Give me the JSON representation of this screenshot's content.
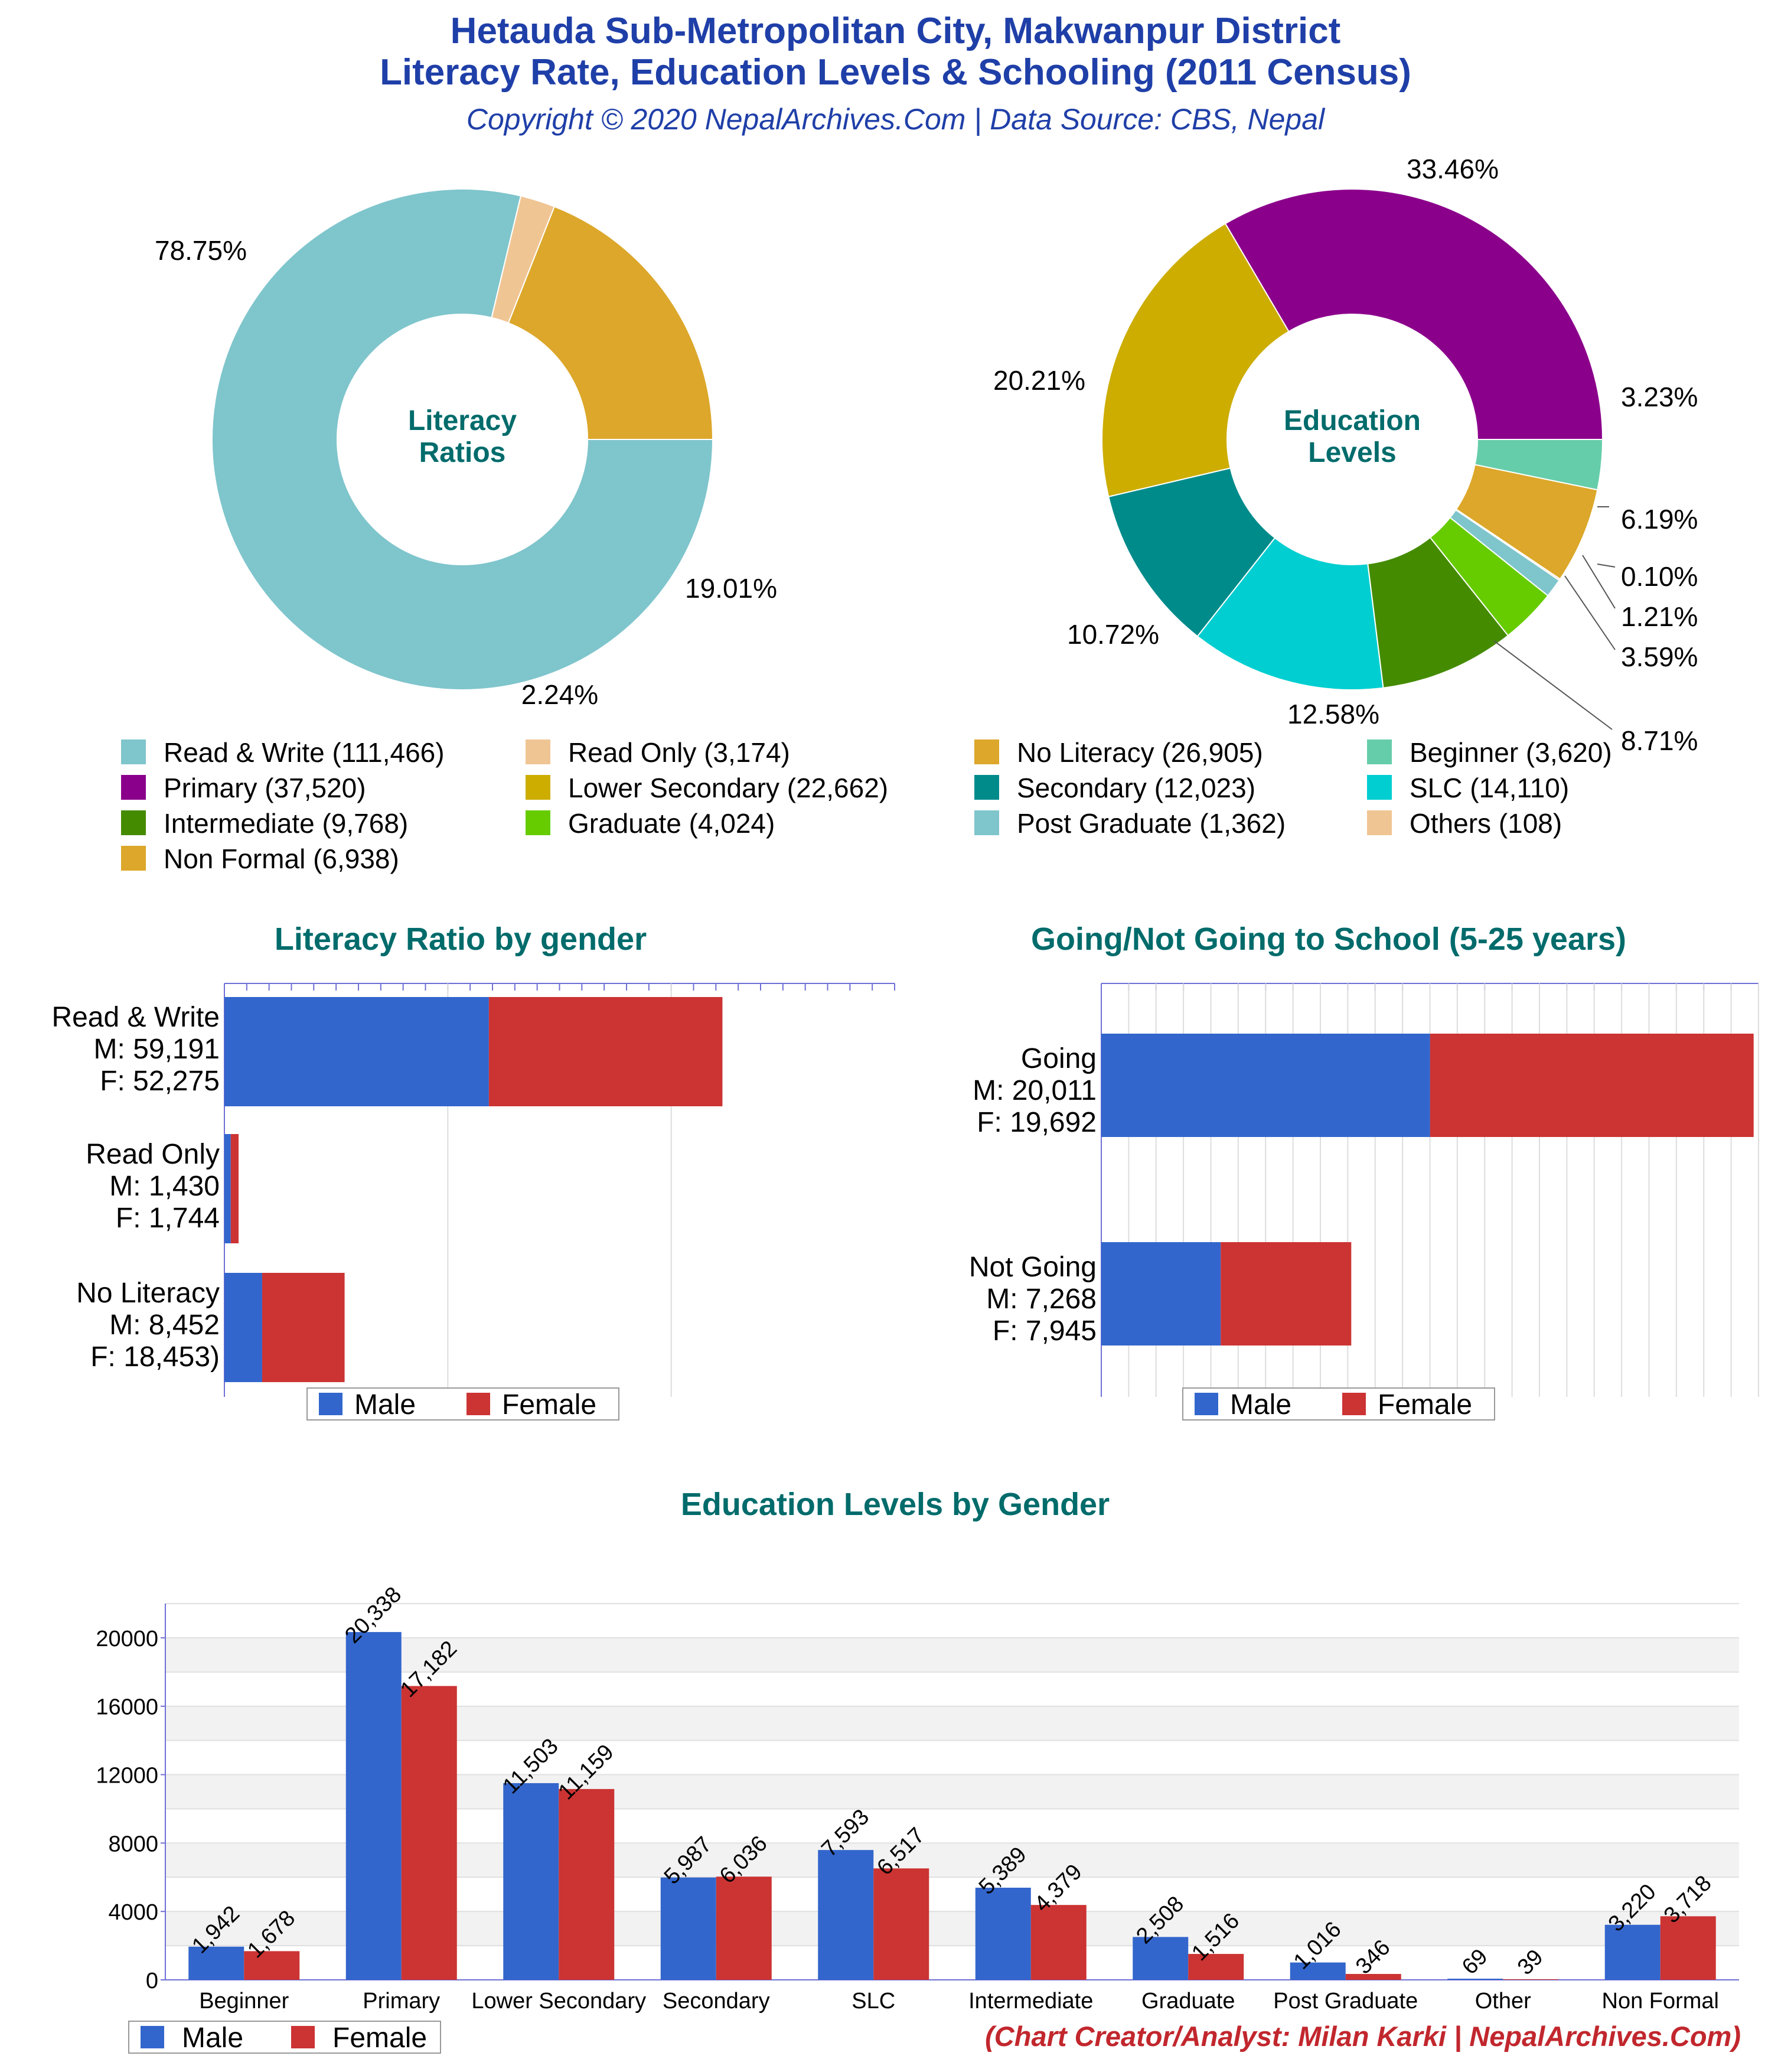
{
  "header": {
    "title_line1": "Hetauda Sub-Metropolitan City, Makwanpur District",
    "title_line2": "Literacy Rate, Education Levels & Schooling (2011 Census)",
    "subtitle": "Copyright © 2020 NepalArchives.Com | Data Source: CBS, Nepal"
  },
  "footer": {
    "credit": "(Chart Creator/Analyst: Milan Karki | NepalArchives.Com)"
  },
  "chart_data": [
    {
      "type": "pie",
      "variant": "donut",
      "title": "Literacy Ratios",
      "center_label": [
        "Literacy",
        "Ratios"
      ],
      "slices": [
        {
          "label": "Read & Write",
          "value": 111466,
          "percent": "78.75%",
          "color": "#7fc5cc"
        },
        {
          "label": "Read Only",
          "value": 3174,
          "percent": "2.24%",
          "color": "#f0c594"
        },
        {
          "label": "No Literacy",
          "value": 26905,
          "percent": "19.01%",
          "color": "#dca72a"
        }
      ]
    },
    {
      "type": "pie",
      "variant": "donut",
      "title": "Education Levels",
      "center_label": [
        "Education",
        "Levels"
      ],
      "slices": [
        {
          "label": "Beginner",
          "value": 3620,
          "percent": "3.23%",
          "color": "#66cdaa"
        },
        {
          "label": "Non Formal",
          "value": 6938,
          "percent": "6.19%",
          "color": "#dca72a"
        },
        {
          "label": "Others",
          "value": 108,
          "percent": "0.10%",
          "color": "#f0c594"
        },
        {
          "label": "Post Graduate",
          "value": 1362,
          "percent": "1.21%",
          "color": "#7fc5cc"
        },
        {
          "label": "Graduate",
          "value": 4024,
          "percent": "3.59%",
          "color": "#66cc00"
        },
        {
          "label": "Intermediate",
          "value": 9768,
          "percent": "8.71%",
          "color": "#458b00"
        },
        {
          "label": "SLC",
          "value": 14110,
          "percent": "12.58%",
          "color": "#00ced1"
        },
        {
          "label": "Secondary",
          "value": 12023,
          "percent": "10.72%",
          "color": "#008b8b"
        },
        {
          "label": "Lower Secondary",
          "value": 22662,
          "percent": "20.21%",
          "color": "#ccad00"
        },
        {
          "label": "Primary",
          "value": 37520,
          "percent": "33.46%",
          "color": "#8b008b"
        }
      ]
    },
    {
      "type": "legend",
      "entries": [
        {
          "label": "Read & Write (111,466)",
          "color": "#7fc5cc"
        },
        {
          "label": "Read Only (3,174)",
          "color": "#f0c594"
        },
        {
          "label": "No Literacy (26,905)",
          "color": "#dca72a"
        },
        {
          "label": "Beginner (3,620)",
          "color": "#66cdaa"
        },
        {
          "label": "Primary (37,520)",
          "color": "#8b008b"
        },
        {
          "label": "Lower Secondary (22,662)",
          "color": "#ccad00"
        },
        {
          "label": "Secondary (12,023)",
          "color": "#008b8b"
        },
        {
          "label": "SLC (14,110)",
          "color": "#00ced1"
        },
        {
          "label": "Intermediate (9,768)",
          "color": "#458b00"
        },
        {
          "label": "Graduate (4,024)",
          "color": "#66cc00"
        },
        {
          "label": "Post Graduate (1,362)",
          "color": "#7fc5cc"
        },
        {
          "label": "Others (108)",
          "color": "#f0c594"
        },
        {
          "label": "Non Formal (6,938)",
          "color": "#dca72a"
        }
      ]
    },
    {
      "type": "bar",
      "orientation": "horizontal",
      "stacked": true,
      "title": "Literacy Ratio by gender",
      "categories": [
        {
          "name": "Read & Write",
          "male_text": "M: 59,191",
          "female_text": "F: 52,275"
        },
        {
          "name": "Read Only",
          "male_text": "M: 1,430",
          "female_text": "F: 1,744"
        },
        {
          "name": "No Literacy",
          "male_text": "M: 8,452",
          "female_text": "F: 18,453)"
        }
      ],
      "series": [
        {
          "name": "Male",
          "color": "#3366cc",
          "values": [
            59191,
            1430,
            8452
          ]
        },
        {
          "name": "Female",
          "color": "#cc3333",
          "values": [
            52275,
            1744,
            18453
          ]
        }
      ],
      "xlim": [
        0,
        150000
      ]
    },
    {
      "type": "bar",
      "orientation": "horizontal",
      "stacked": true,
      "title": "Going/Not Going to School (5-25 years)",
      "categories": [
        {
          "name": "Going",
          "male_text": "M: 20,011",
          "female_text": "F: 19,692"
        },
        {
          "name": "Not Going",
          "male_text": "M: 7,268",
          "female_text": "F: 7,945"
        }
      ],
      "series": [
        {
          "name": "Male",
          "color": "#3366cc",
          "values": [
            20011,
            7268
          ]
        },
        {
          "name": "Female",
          "color": "#cc3333",
          "values": [
            19692,
            7945
          ]
        }
      ],
      "xlim": [
        0,
        40000
      ]
    },
    {
      "type": "bar",
      "title": "Education Levels by Gender",
      "categories": [
        "Beginner",
        "Primary",
        "Lower Secondary",
        "Secondary",
        "SLC",
        "Intermediate",
        "Graduate",
        "Post Graduate",
        "Other",
        "Non Formal"
      ],
      "series": [
        {
          "name": "Male",
          "color": "#3366cc",
          "values": [
            1942,
            20338,
            11503,
            5987,
            7593,
            5389,
            2508,
            1016,
            69,
            3220
          ],
          "labels": [
            "1,942",
            "20,338",
            "11,503",
            "5,987",
            "7,593",
            "5,389",
            "2,508",
            "1,016",
            "69",
            "3,220"
          ]
        },
        {
          "name": "Female",
          "color": "#cc3333",
          "values": [
            1678,
            17182,
            11159,
            6036,
            6517,
            4379,
            1516,
            346,
            39,
            3718
          ],
          "labels": [
            "1,678",
            "17,182",
            "11,159",
            "6,036",
            "6,517",
            "4,379",
            "1,516",
            "346",
            "39",
            "3,718"
          ]
        }
      ],
      "yticks": [
        "0",
        "4000",
        "8000",
        "12000",
        "16000",
        "20000"
      ],
      "ylim": [
        0,
        22000
      ]
    }
  ]
}
